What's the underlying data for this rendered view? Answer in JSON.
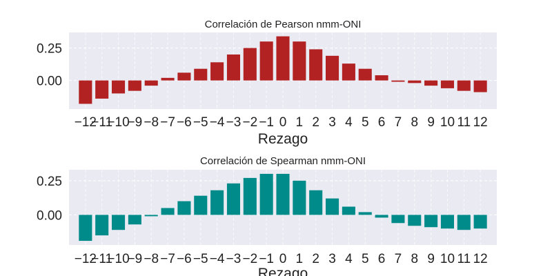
{
  "chart_data": [
    {
      "type": "bar",
      "title": "Correlación de Pearson nmm-ONI",
      "xlabel": "Rezago",
      "ylabel": "",
      "color": "#b22222",
      "x": [
        -12,
        -11,
        -10,
        -9,
        -8,
        -7,
        -6,
        -5,
        -4,
        -3,
        -2,
        -1,
        0,
        1,
        2,
        3,
        4,
        5,
        6,
        7,
        8,
        9,
        10,
        11,
        12
      ],
      "x_tick_labels": [
        "−12",
        "−11",
        "−10",
        "−9",
        "−8",
        "−7",
        "−6",
        "−5",
        "−4",
        "−3",
        "−2",
        "−1",
        "0",
        "1",
        "2",
        "3",
        "4",
        "5",
        "6",
        "7",
        "8",
        "9",
        "10",
        "11",
        "12"
      ],
      "values": [
        -0.18,
        -0.14,
        -0.1,
        -0.08,
        -0.04,
        0.02,
        0.06,
        0.09,
        0.14,
        0.2,
        0.25,
        0.3,
        0.34,
        0.3,
        0.24,
        0.19,
        0.13,
        0.09,
        0.04,
        -0.01,
        -0.02,
        -0.04,
        -0.06,
        -0.08,
        -0.09
      ],
      "yticks": [
        0.0,
        0.25
      ],
      "ytick_labels": [
        "0.00",
        "0.25"
      ],
      "ylim": [
        -0.22,
        0.37
      ],
      "grid": true
    },
    {
      "type": "bar",
      "title": "Correlación de Spearman nmm-ONI",
      "xlabel": "Rezago",
      "ylabel": "",
      "color": "#008b8b",
      "x": [
        -12,
        -11,
        -10,
        -9,
        -8,
        -7,
        -6,
        -5,
        -4,
        -3,
        -2,
        -1,
        0,
        1,
        2,
        3,
        4,
        5,
        6,
        7,
        8,
        9,
        10,
        11,
        12
      ],
      "x_tick_labels": [
        "−12",
        "−11",
        "−10",
        "−9",
        "−8",
        "−7",
        "−6",
        "−5",
        "−4",
        "−3",
        "−2",
        "−1",
        "0",
        "1",
        "2",
        "3",
        "4",
        "5",
        "6",
        "7",
        "8",
        "9",
        "10",
        "11",
        "12"
      ],
      "values": [
        -0.19,
        -0.15,
        -0.11,
        -0.07,
        -0.01,
        0.05,
        0.1,
        0.14,
        0.18,
        0.23,
        0.27,
        0.3,
        0.3,
        0.25,
        0.18,
        0.12,
        0.06,
        0.02,
        -0.02,
        -0.06,
        -0.08,
        -0.09,
        -0.1,
        -0.11,
        -0.1
      ],
      "yticks": [
        0.0,
        0.25
      ],
      "ytick_labels": [
        "0.00",
        "0.25"
      ],
      "ylim": [
        -0.22,
        0.33
      ],
      "grid": true
    }
  ]
}
